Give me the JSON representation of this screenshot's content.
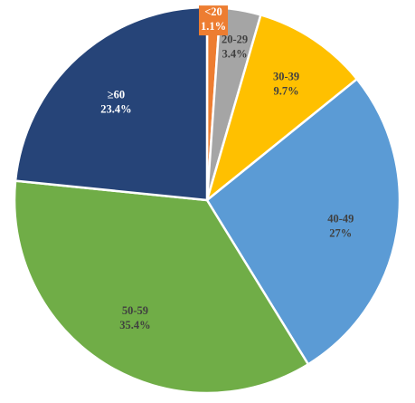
{
  "chart_data": {
    "type": "pie",
    "title": "",
    "start": "12 o'clock",
    "direction": "clockwise",
    "legend": "none",
    "categories": [
      "<20",
      "20-29",
      "30-39",
      "40-49",
      "50-59",
      "≥60"
    ],
    "values": [
      1.1,
      3.4,
      9.7,
      27,
      35.4,
      23.4
    ],
    "value_labels": [
      "1.1%",
      "3.4%",
      "9.7%",
      "27%",
      "35.4%",
      "23.4%"
    ],
    "colors": [
      "#ED7D31",
      "#A5A5A5",
      "#FFC000",
      "#5B9BD5",
      "#70AD47",
      "#264478"
    ],
    "label_colors": [
      "#ffffff",
      "#404040",
      "#404040",
      "#404040",
      "#404040",
      "#ffffff"
    ]
  }
}
